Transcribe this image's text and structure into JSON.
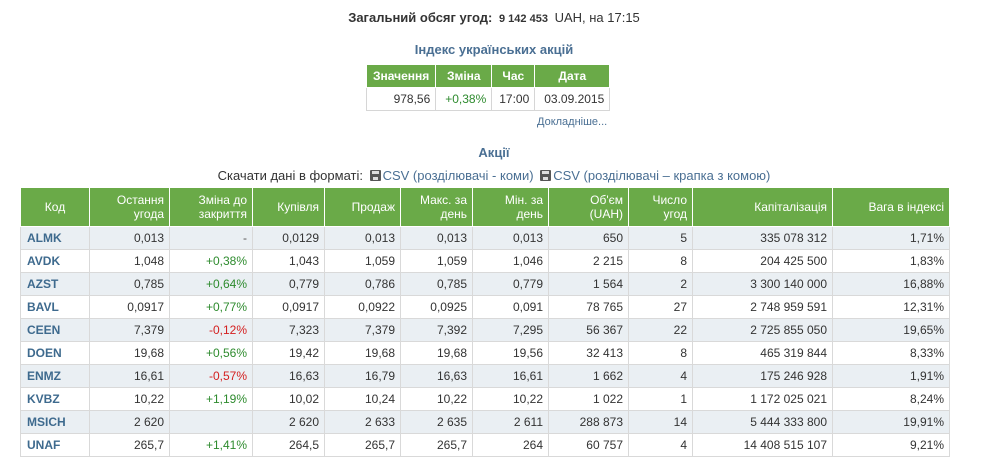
{
  "summary": {
    "label": "Загальний обсяг угод:",
    "volume": "9 142 453",
    "currency_time": "UAH, на 17:15"
  },
  "index": {
    "title": "Індекс українських акцій",
    "headers": [
      "Значення",
      "Зміна",
      "Час",
      "Дата"
    ],
    "value": "978,56",
    "change": "+0,38%",
    "time": "17:00",
    "date": "03.09.2015",
    "more_link": "Докладніше..."
  },
  "shares": {
    "title": "Акції",
    "download_label": "Скачати дані в форматі:",
    "csv_comma": "CSV (розділювачі - коми)",
    "csv_semicolon": "CSV (розділювачі – крапка з комою)",
    "headers": [
      "Код",
      "Остання угода",
      "Зміна до закриття",
      "Купівля",
      "Продаж",
      "Макс. за день",
      "Мін. за день",
      "Об'єм (UAH)",
      "Число угод",
      "Капіталізація",
      "Вага в індексі"
    ],
    "rows": [
      [
        "ALMK",
        "0,013",
        "-",
        "0,0129",
        "0,013",
        "0,013",
        "0,013",
        "650",
        "5",
        "335 078 312",
        "1,71%"
      ],
      [
        "AVDK",
        "1,048",
        "+0,38%",
        "1,043",
        "1,059",
        "1,059",
        "1,046",
        "2 215",
        "8",
        "204 425 500",
        "1,83%"
      ],
      [
        "AZST",
        "0,785",
        "+0,64%",
        "0,779",
        "0,786",
        "0,785",
        "0,779",
        "1 564",
        "2",
        "3 300 140 000",
        "16,88%"
      ],
      [
        "BAVL",
        "0,0917",
        "+0,77%",
        "0,0917",
        "0,0922",
        "0,0925",
        "0,091",
        "78 765",
        "27",
        "2 748 959 591",
        "12,31%"
      ],
      [
        "CEEN",
        "7,379",
        "-0,12%",
        "7,323",
        "7,379",
        "7,392",
        "7,295",
        "56 367",
        "22",
        "2 725 855 050",
        "19,65%"
      ],
      [
        "DOEN",
        "19,68",
        "+0,56%",
        "19,42",
        "19,68",
        "19,68",
        "19,56",
        "32 413",
        "8",
        "465 319 844",
        "8,33%"
      ],
      [
        "ENMZ",
        "16,61",
        "-0,57%",
        "16,63",
        "16,79",
        "16,63",
        "16,61",
        "1 662",
        "4",
        "175 246 928",
        "1,91%"
      ],
      [
        "KVBZ",
        "10,22",
        "+1,19%",
        "10,02",
        "10,24",
        "10,22",
        "10,22",
        "1 022",
        "1",
        "1 172 025 021",
        "8,24%"
      ],
      [
        "MSICH",
        "2 620",
        "",
        "2 620",
        "2 633",
        "2 635",
        "2 611",
        "288 873",
        "14",
        "5 444 333 800",
        "19,91%"
      ],
      [
        "UNAF",
        "265,7",
        "+1,41%",
        "264,5",
        "265,7",
        "265,7",
        "264",
        "60 757",
        "4",
        "14 408 515 107",
        "9,21%"
      ]
    ]
  },
  "colors": {
    "header_green": "#6aaa48",
    "link_blue": "#4a6f93",
    "positive": "#2e8b2e",
    "negative": "#d42020",
    "alt_row": "#eaeff3"
  }
}
